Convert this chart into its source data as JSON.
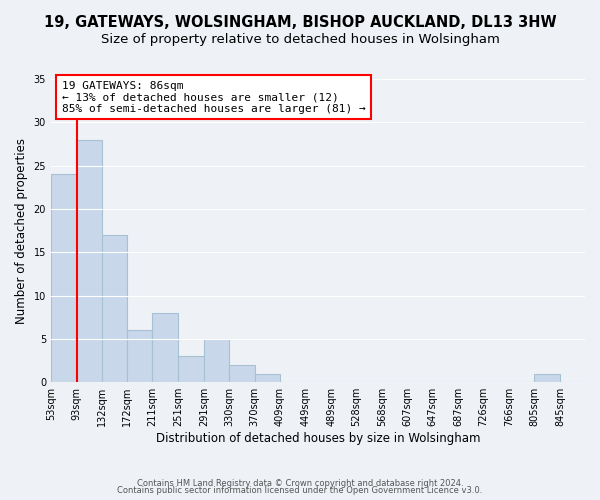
{
  "title": "19, GATEWAYS, WOLSINGHAM, BISHOP AUCKLAND, DL13 3HW",
  "subtitle": "Size of property relative to detached houses in Wolsingham",
  "xlabel": "Distribution of detached houses by size in Wolsingham",
  "ylabel": "Number of detached properties",
  "bar_labels": [
    "53sqm",
    "93sqm",
    "132sqm",
    "172sqm",
    "211sqm",
    "251sqm",
    "291sqm",
    "330sqm",
    "370sqm",
    "409sqm",
    "449sqm",
    "489sqm",
    "528sqm",
    "568sqm",
    "607sqm",
    "647sqm",
    "687sqm",
    "726sqm",
    "766sqm",
    "805sqm",
    "845sqm"
  ],
  "bar_values": [
    24,
    28,
    17,
    6,
    8,
    3,
    5,
    2,
    1,
    0,
    0,
    0,
    0,
    0,
    0,
    0,
    0,
    0,
    0,
    1,
    0
  ],
  "bar_color": "#c8d8ea",
  "bar_edge_color": "#a8c0d4",
  "bin_edges": [
    53,
    93,
    132,
    172,
    211,
    251,
    291,
    330,
    370,
    409,
    449,
    489,
    528,
    568,
    607,
    647,
    687,
    726,
    766,
    805,
    845,
    884
  ],
  "red_line_x": 93,
  "ylim": [
    0,
    35
  ],
  "yticks": [
    0,
    5,
    10,
    15,
    20,
    25,
    30,
    35
  ],
  "annotation_title": "19 GATEWAYS: 86sqm",
  "annotation_line1": "← 13% of detached houses are smaller (12)",
  "annotation_line2": "85% of semi-detached houses are larger (81) →",
  "annotation_box_color": "white",
  "annotation_box_edge_color": "red",
  "footer_line1": "Contains HM Land Registry data © Crown copyright and database right 2024.",
  "footer_line2": "Contains public sector information licensed under the Open Government Licence v3.0.",
  "background_color": "#eef2f7",
  "title_fontsize": 10.5,
  "subtitle_fontsize": 9.5,
  "bar_linewidth": 0.8
}
